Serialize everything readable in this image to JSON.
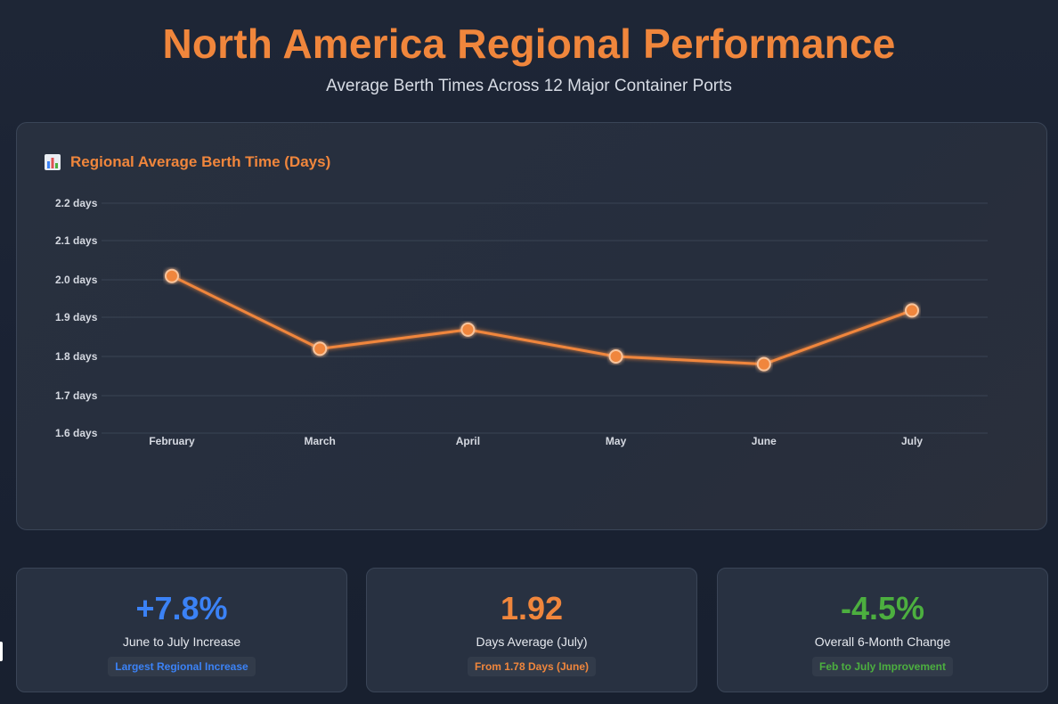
{
  "header": {
    "title": "North America Regional Performance",
    "subtitle": "Average Berth Times Across 12 Major Container Ports"
  },
  "chart_card": {
    "icon": "bar-chart-icon",
    "title": "Regional Average Berth Time (Days)"
  },
  "chart_data": {
    "type": "line",
    "title": "Regional Average Berth Time (Days)",
    "categories": [
      "February",
      "March",
      "April",
      "May",
      "June",
      "July"
    ],
    "series": [
      {
        "values": [
          2.01,
          1.82,
          1.87,
          1.8,
          1.78,
          1.92
        ],
        "color": "#f0863c"
      }
    ],
    "y_ticks": [
      "2.2 days",
      "2.1 days",
      "2.0 days",
      "1.9 days",
      "1.8 days",
      "1.7 days",
      "1.6 days"
    ],
    "ylim": [
      1.6,
      2.2
    ],
    "xlabel": "",
    "ylabel": "",
    "grid": true,
    "legend": "none"
  },
  "stats": [
    {
      "value": "+7.8%",
      "label": "June to July Increase",
      "badge": "Largest Regional Increase",
      "color": "#3b82f6"
    },
    {
      "value": "1.92",
      "label": "Days Average (July)",
      "badge": "From 1.78 Days (June)",
      "color": "#f0863c"
    },
    {
      "value": "-4.5%",
      "label": "Overall 6-Month Change",
      "badge": "Feb to July Improvement",
      "color": "#4caf3f"
    }
  ]
}
